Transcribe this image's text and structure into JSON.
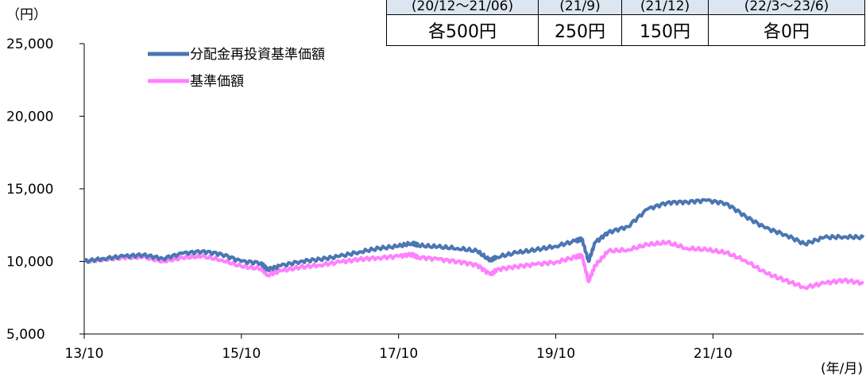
{
  "chart_data": {
    "type": "line",
    "ylabel": "（円）",
    "xlabel": "(年/月)",
    "ylim": [
      5000,
      25000
    ],
    "yticks": [
      5000,
      10000,
      15000,
      20000,
      25000
    ],
    "ytick_labels": [
      "5,000",
      "10,000",
      "15,000",
      "20,000",
      "25,000"
    ],
    "xtick_labels": [
      "13/10",
      "15/10",
      "17/10",
      "19/10",
      "21/10"
    ],
    "xlim": [
      "2013-10",
      "2023-09"
    ],
    "grid": false,
    "legend": "top-left",
    "series": [
      {
        "name": "分配金再投資基準価額",
        "color": "#4a76b2",
        "x": [
          "2013-10",
          "2014-01",
          "2014-04",
          "2014-07",
          "2014-10",
          "2015-01",
          "2015-04",
          "2015-07",
          "2015-10",
          "2016-01",
          "2016-02",
          "2016-04",
          "2016-07",
          "2016-10",
          "2017-01",
          "2017-04",
          "2017-07",
          "2017-10",
          "2017-12",
          "2018-01",
          "2018-04",
          "2018-07",
          "2018-10",
          "2018-12",
          "2019-01",
          "2019-04",
          "2019-07",
          "2019-10",
          "2020-01",
          "2020-02",
          "2020-03",
          "2020-04",
          "2020-06",
          "2020-09",
          "2020-12",
          "2021-03",
          "2021-06",
          "2021-09",
          "2021-12",
          "2022-03",
          "2022-06",
          "2022-09",
          "2022-12",
          "2023-03",
          "2023-06",
          "2023-09"
        ],
        "values": [
          10000,
          10200,
          10350,
          10450,
          10200,
          10550,
          10700,
          10500,
          10000,
          9900,
          9450,
          9700,
          10000,
          10150,
          10350,
          10650,
          10900,
          11050,
          11250,
          11100,
          11000,
          10900,
          10700,
          10050,
          10300,
          10600,
          10800,
          11050,
          11400,
          11550,
          10000,
          11300,
          12000,
          12400,
          13600,
          14050,
          14100,
          14200,
          14000,
          13100,
          12300,
          11850,
          11200,
          11650,
          11700,
          11650
        ]
      },
      {
        "name": "基準価額",
        "color": "#ff80ff",
        "x": [
          "2013-10",
          "2014-01",
          "2014-04",
          "2014-07",
          "2014-10",
          "2015-01",
          "2015-04",
          "2015-07",
          "2015-10",
          "2016-01",
          "2016-02",
          "2016-04",
          "2016-07",
          "2016-10",
          "2017-01",
          "2017-04",
          "2017-07",
          "2017-10",
          "2017-12",
          "2018-01",
          "2018-04",
          "2018-07",
          "2018-10",
          "2018-12",
          "2019-01",
          "2019-04",
          "2019-07",
          "2019-10",
          "2020-01",
          "2020-02",
          "2020-03",
          "2020-04",
          "2020-06",
          "2020-09",
          "2020-12",
          "2021-03",
          "2021-06",
          "2021-09",
          "2021-12",
          "2022-03",
          "2022-06",
          "2022-09",
          "2022-12",
          "2023-03",
          "2023-06",
          "2023-09"
        ],
        "values": [
          10000,
          10150,
          10250,
          10300,
          10000,
          10250,
          10350,
          10100,
          9650,
          9500,
          9050,
          9350,
          9600,
          9750,
          9950,
          10150,
          10250,
          10350,
          10500,
          10300,
          10150,
          10000,
          9750,
          9100,
          9450,
          9650,
          9800,
          9950,
          10300,
          10400,
          8600,
          9700,
          10700,
          10800,
          11150,
          11300,
          10900,
          10800,
          10600,
          10050,
          9200,
          8700,
          8200,
          8500,
          8700,
          8500
        ]
      }
    ]
  },
  "dist_table": {
    "headers": [
      "(20/12～21/06)",
      "(21/9)",
      "(21/12)",
      "(22/3～23/6)"
    ],
    "values": [
      "各500円",
      "250円",
      "150円",
      "各0円"
    ]
  }
}
